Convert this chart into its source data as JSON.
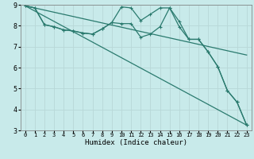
{
  "title": "",
  "xlabel": "Humidex (Indice chaleur)",
  "ylabel": "",
  "xlim": [
    -0.5,
    23.5
  ],
  "ylim": [
    3,
    9
  ],
  "xticks": [
    0,
    1,
    2,
    3,
    4,
    5,
    6,
    7,
    8,
    9,
    10,
    11,
    12,
    13,
    14,
    15,
    16,
    17,
    18,
    19,
    20,
    21,
    22,
    23
  ],
  "yticks": [
    3,
    4,
    5,
    6,
    7,
    8,
    9
  ],
  "bg_color": "#c8eaea",
  "grid_color": "#b8d8d8",
  "line_color": "#2a7a6e",
  "lines": [
    {
      "x": [
        0,
        1,
        2,
        3,
        4,
        5,
        6,
        7,
        8,
        9,
        10,
        11,
        12,
        13,
        14,
        15,
        16,
        17,
        18,
        19,
        20,
        21,
        22,
        23
      ],
      "y": [
        8.95,
        8.85,
        8.05,
        7.95,
        7.8,
        7.75,
        7.65,
        7.6,
        7.85,
        8.15,
        8.9,
        8.85,
        8.25,
        8.55,
        8.85,
        8.85,
        8.2,
        7.35,
        7.35,
        6.75,
        6.05,
        4.9,
        4.35,
        3.25
      ],
      "marker": true
    },
    {
      "x": [
        0,
        1,
        2,
        3,
        4,
        5,
        6,
        7,
        8,
        9,
        10,
        11,
        12,
        13,
        14,
        15,
        16,
        17,
        18,
        19,
        20,
        21,
        22,
        23
      ],
      "y": [
        8.95,
        8.85,
        8.05,
        7.95,
        7.8,
        7.75,
        7.65,
        7.6,
        7.85,
        8.15,
        8.1,
        8.1,
        7.45,
        7.6,
        7.95,
        8.85,
        7.95,
        7.35,
        7.35,
        6.75,
        6.05,
        4.9,
        4.35,
        3.25
      ],
      "marker": true
    },
    {
      "x": [
        0,
        23
      ],
      "y": [
        8.95,
        3.25
      ],
      "marker": false
    },
    {
      "x": [
        0,
        23
      ],
      "y": [
        8.95,
        6.6
      ],
      "marker": false
    }
  ]
}
